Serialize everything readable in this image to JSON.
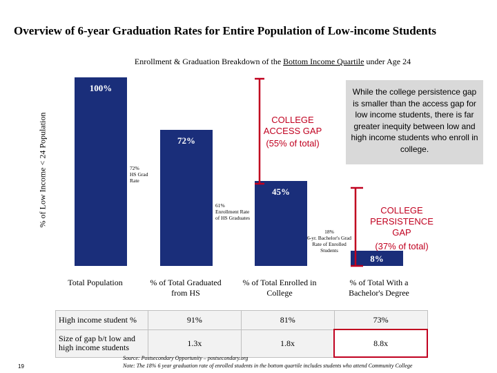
{
  "title": "Overview of 6-year Graduation Rates for Entire Population of Low-income Students",
  "subtitle": {
    "prefix": "Enrollment & Graduation Breakdown of the ",
    "underlined": "Bottom Income Quartile",
    "suffix": " under Age 24"
  },
  "chart_data": {
    "type": "bar",
    "ylabel": "% of Low Income < 24 Population",
    "categories": [
      "Total Population",
      "% of Total Graduated from HS",
      "% of Total Enrolled in College",
      "% of Total With a Bachelor's Degree"
    ],
    "values": [
      100,
      72,
      45,
      8
    ],
    "data_labels": [
      "100%",
      "72%",
      "45%",
      "8%"
    ],
    "ylim": [
      0,
      100
    ],
    "bar_color": "#1a2e7a",
    "notes": [
      {
        "value": "72%",
        "text": "HS Grad Rate"
      },
      {
        "value": "61%",
        "text": "Enrollment Rate of HS Graduates"
      },
      {
        "value": "18%",
        "text": "6-yr. Bachelor's Grad Rate of Enrolled Students"
      }
    ],
    "annotations": [
      {
        "label": "COLLEGE ACCESS GAP",
        "sub": "(55% of total)",
        "color": "#c0001f"
      },
      {
        "label": "COLLEGE PERSISTENCE GAP",
        "sub": "(37% of total)",
        "color": "#c0001f"
      }
    ]
  },
  "callout": "While the college persistence gap is smaller than the access gap for low income students, there is far greater inequity between low and high income students who enroll in college.",
  "table": {
    "rows": [
      {
        "label": "High income student %",
        "values": [
          "91%",
          "81%",
          "73%"
        ]
      },
      {
        "label": "Size of gap b/t low and high income students",
        "values": [
          "1.3x",
          "1.8x",
          "8.8x"
        ]
      }
    ]
  },
  "source": "Source: Postsecondary Opportunity – postsecondary.org",
  "note": "Note: The 18% 6 year graduation rate of enrolled students in the bottom quartile includes students who attend Community College",
  "page_number": "19"
}
